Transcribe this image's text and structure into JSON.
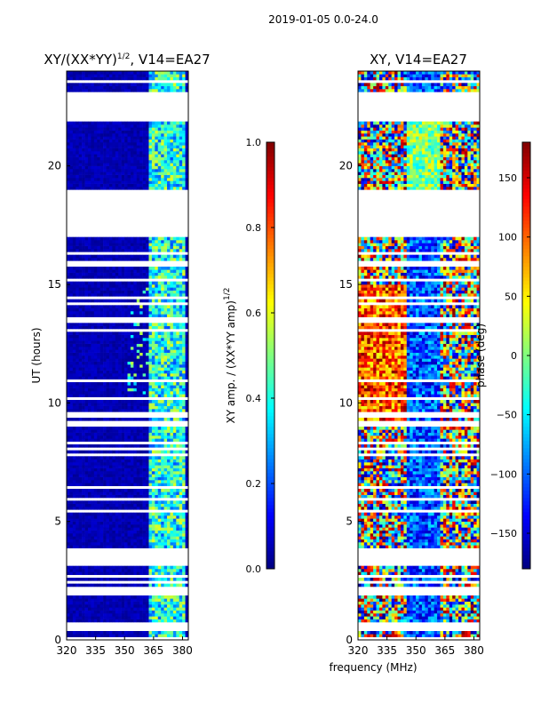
{
  "figure_title": "2019-01-05 0.0-24.0",
  "shared_xlabel": "frequency (MHz)",
  "chart_data": [
    {
      "type": "heatmap",
      "title_main": "XY/(XX*YY)",
      "title_sup": "1/2",
      "title_rest": ", V14=EA27",
      "xlabel": "frequency (MHz)",
      "ylabel": "UT (hours)",
      "xlim": [
        320,
        383
      ],
      "ylim": [
        0,
        24
      ],
      "x_ticks": [
        320,
        335,
        350,
        365,
        380
      ],
      "y_ticks": [
        0,
        5,
        10,
        15,
        20
      ],
      "colormap": "jet",
      "colorbar": {
        "label_main": "XY amp. / (XX*YY amp)",
        "label_sup": "1/2",
        "range": [
          0.0,
          1.0
        ],
        "ticks": [
          "0.0",
          "0.2",
          "0.4",
          "0.6",
          "0.8",
          "1.0"
        ],
        "tick_values": [
          0.0,
          0.2,
          0.4,
          0.6,
          0.8,
          1.0
        ]
      },
      "flagged_hours": [
        [
          17.0,
          18.8
        ],
        [
          22.0,
          23.0
        ],
        [
          3.1,
          3.9
        ],
        [
          2.0,
          2.2
        ]
      ],
      "high_band_mhz": [
        363,
        382
      ],
      "notes": "amplitude mostly near 0 (dark blue) below 363 MHz; 0.2-0.6 in 363-382 MHz band"
    },
    {
      "type": "heatmap",
      "title_main": "XY, V14=EA27",
      "xlabel": "frequency (MHz)",
      "ylabel": "",
      "xlim": [
        320,
        383
      ],
      "ylim": [
        0,
        24
      ],
      "x_ticks": [
        320,
        335,
        350,
        365,
        380
      ],
      "y_ticks": [
        0,
        5,
        10,
        15,
        20
      ],
      "colormap": "jet",
      "colorbar": {
        "label_main": "phase (deg)",
        "range": [
          -180,
          180
        ],
        "ticks": [
          "−150",
          "−100",
          "−50",
          "0",
          "50",
          "100",
          "150"
        ],
        "tick_values": [
          -150,
          -100,
          -50,
          0,
          50,
          100,
          150
        ]
      },
      "flagged_hours": [
        [
          17.0,
          18.8
        ],
        [
          22.0,
          23.0
        ],
        [
          3.1,
          3.9
        ],
        [
          2.0,
          2.2
        ]
      ],
      "notes": "phase values span full -180..180 deg range"
    }
  ]
}
